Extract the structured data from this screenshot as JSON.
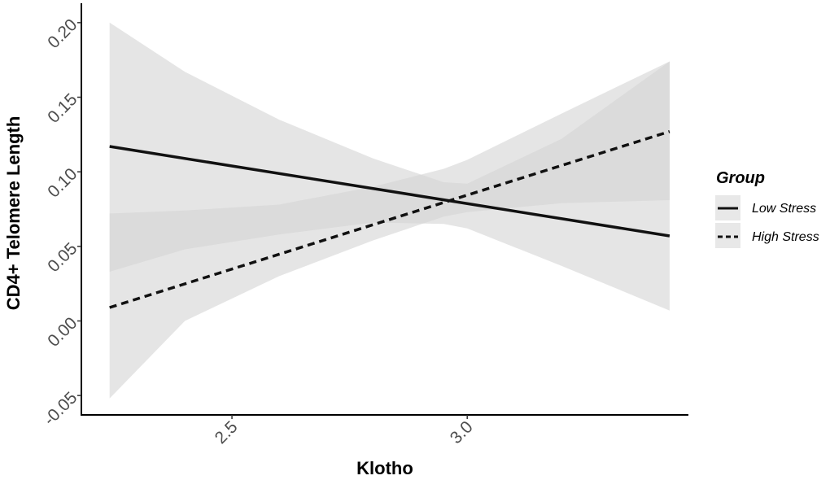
{
  "chart_data": {
    "type": "line",
    "xlabel": "Klotho",
    "ylabel": "CD4+ Telomere Length",
    "xlim": [
      2.18,
      3.47
    ],
    "ylim": [
      -0.063,
      0.213
    ],
    "x_ticks": [
      2.5,
      3.0
    ],
    "x_tick_labels": [
      "2.5",
      "3.0"
    ],
    "y_ticks": [
      -0.05,
      0.0,
      0.05,
      0.1,
      0.15,
      0.2
    ],
    "y_tick_labels": [
      "-0.05",
      "0.00",
      "0.05",
      "0.10",
      "0.15",
      "0.20"
    ],
    "grid": false,
    "legend": {
      "title": "Group",
      "position": "right"
    },
    "band_color": "#d4d4d4",
    "line_color": "#111111",
    "series": [
      {
        "name": "Low Stress",
        "line_style": "solid",
        "x": [
          2.24,
          3.43
        ],
        "y": [
          0.117,
          0.057
        ],
        "ci_x": [
          2.24,
          2.4,
          2.6,
          2.8,
          2.95,
          3.0,
          3.2,
          3.43
        ],
        "ci_lower": [
          0.033,
          0.048,
          0.058,
          0.066,
          0.065,
          0.062,
          0.037,
          0.007
        ],
        "ci_upper": [
          0.2,
          0.167,
          0.135,
          0.109,
          0.093,
          0.092,
          0.122,
          0.174
        ]
      },
      {
        "name": "High Stress",
        "line_style": "dashed",
        "x": [
          2.24,
          3.43
        ],
        "y": [
          0.009,
          0.127
        ],
        "ci_x": [
          2.24,
          2.4,
          2.6,
          2.8,
          2.95,
          3.0,
          3.2,
          3.43
        ],
        "ci_lower": [
          -0.052,
          0.0,
          0.03,
          0.054,
          0.07,
          0.073,
          0.079,
          0.081
        ],
        "ci_upper": [
          0.072,
          0.074,
          0.078,
          0.09,
          0.102,
          0.108,
          0.139,
          0.174
        ]
      }
    ]
  }
}
